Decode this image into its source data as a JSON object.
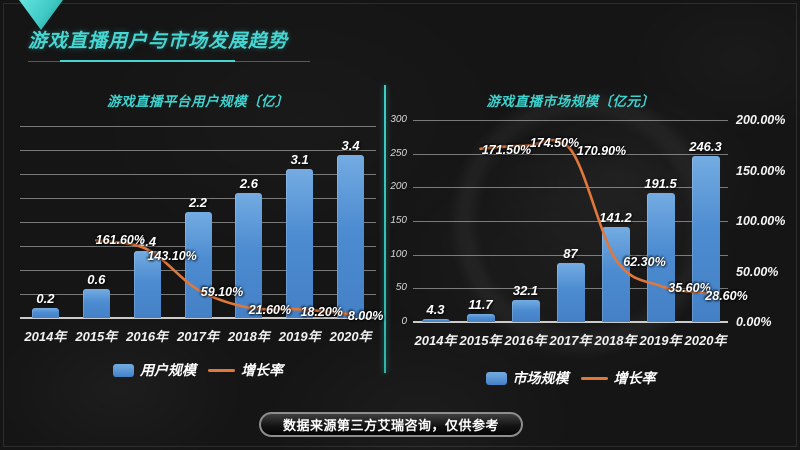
{
  "slide": {
    "title": "游戏直播用户与市场发展趋势",
    "source_note": "数据来源第三方艾瑞咨询，仅供参考"
  },
  "colors": {
    "accent_cyan": "#45d6d2",
    "bar_blue": "#4d8cd1",
    "line_orange": "#e0773b",
    "background": "#151515",
    "grid_gray": "#dedede"
  },
  "chart_data": [
    {
      "type": "bar",
      "title": "游戏直播平台用户规模〔亿〕",
      "categories": [
        "2014年",
        "2015年",
        "2016年",
        "2017年",
        "2018年",
        "2019年",
        "2020年"
      ],
      "series": [
        {
          "name": "用户规模",
          "type": "bar",
          "axis": "left",
          "values": [
            0.2,
            0.6,
            1.4,
            2.2,
            2.6,
            3.1,
            3.4
          ],
          "labels": [
            "0.2",
            "0.6",
            "1.4",
            "2.2",
            "2.6",
            "3.1",
            "3.4"
          ]
        },
        {
          "name": "增长率",
          "type": "line",
          "axis": "right",
          "values": [
            null,
            161.6,
            143.1,
            59.1,
            21.6,
            18.2,
            8.0
          ],
          "labels": [
            null,
            "161.60%",
            "143.10%",
            "59.10%",
            "21.60%",
            "18.20%",
            "8.00%"
          ]
        }
      ],
      "y_left": {
        "min": 0,
        "max": 4,
        "step": 0.5,
        "show_labels": false
      },
      "y_right": {
        "min": 0,
        "max": 400,
        "show_labels": false
      },
      "legend": [
        "用户规模",
        "增长率"
      ],
      "grid": true,
      "legend_position": "bottom"
    },
    {
      "type": "bar",
      "title": "游戏直播市场规模〔亿元〕",
      "categories": [
        "2014年",
        "2015年",
        "2016年",
        "2017年",
        "2018年",
        "2019年",
        "2020年"
      ],
      "series": [
        {
          "name": "市场规模",
          "type": "bar",
          "axis": "left",
          "values": [
            4.3,
            11.7,
            32.1,
            87,
            141.2,
            191.5,
            246.3
          ],
          "labels": [
            "4.3",
            "11.7",
            "32.1",
            "87",
            "141.2",
            "191.5",
            "246.3"
          ]
        },
        {
          "name": "增长率",
          "type": "line",
          "axis": "right",
          "values": [
            null,
            171.5,
            174.5,
            170.9,
            62.3,
            35.6,
            28.6
          ],
          "labels": [
            null,
            "171.50%",
            "174.50%",
            "170.90%",
            "62.30%",
            "35.60%",
            "28.60%"
          ]
        }
      ],
      "y_left": {
        "min": 0,
        "max": 300,
        "step": 50,
        "show_labels": true,
        "tick_labels": [
          "0",
          "50",
          "100",
          "150",
          "200",
          "250",
          "300"
        ]
      },
      "y_right": {
        "min": 0,
        "max": 200,
        "step": 50,
        "show_labels": true,
        "tick_labels": [
          "0.00%",
          "50.00%",
          "100.00%",
          "150.00%",
          "200.00%"
        ]
      },
      "legend": [
        "市场规模",
        "增长率"
      ],
      "grid": true,
      "legend_position": "bottom"
    }
  ]
}
